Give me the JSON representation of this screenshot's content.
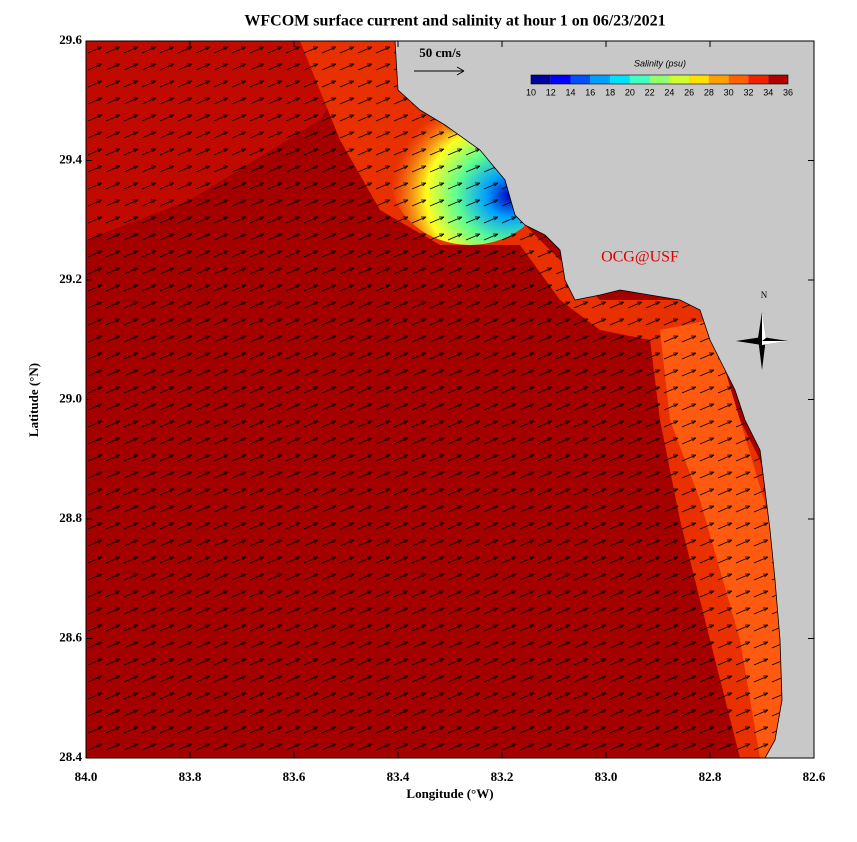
{
  "map": {
    "title": "WFCOM surface current and salinity at hour 1 on 06/23/2021",
    "xlabel": "Longitude (°W)",
    "ylabel": "Latitude (°N)",
    "xlim": [
      84.0,
      82.6
    ],
    "ylim": [
      28.4,
      29.6
    ],
    "xticks": [
      {
        "value": 84.0,
        "label": "84.0"
      },
      83.8,
      83.6,
      83.4,
      83.2,
      {
        "value": 83.0,
        "label": "83.0"
      },
      82.8,
      82.6
    ],
    "yticks": [
      28.4,
      28.6,
      28.8,
      {
        "value": 29.0,
        "label": "29.0"
      },
      29.2,
      29.4,
      29.6
    ],
    "scale_label": "50 cm/s",
    "colorbar": {
      "title": "Salinity (psu)",
      "lim": [
        10,
        36
      ],
      "ticks": [
        10,
        12,
        14,
        16,
        18,
        20,
        22,
        24,
        26,
        28,
        30,
        32,
        34,
        36
      ],
      "colors": [
        "#0000a0",
        "#0000ff",
        "#0050ff",
        "#00a0ff",
        "#00e0ff",
        "#40ffc0",
        "#90ff70",
        "#d0ff30",
        "#ffe000",
        "#ffa000",
        "#ff6000",
        "#f02000",
        "#b00000"
      ]
    },
    "credit": "OCG@USF",
    "compass": "N"
  }
}
